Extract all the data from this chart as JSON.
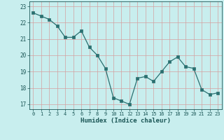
{
  "x": [
    0,
    1,
    2,
    3,
    4,
    5,
    6,
    7,
    8,
    9,
    10,
    11,
    12,
    13,
    14,
    15,
    16,
    17,
    18,
    19,
    20,
    21,
    22,
    23
  ],
  "y": [
    22.6,
    22.4,
    22.2,
    21.8,
    21.1,
    21.1,
    21.5,
    20.5,
    20.0,
    19.2,
    17.4,
    17.2,
    17.0,
    18.6,
    18.7,
    18.4,
    19.0,
    19.6,
    19.9,
    19.3,
    19.2,
    17.9,
    17.6,
    17.7
  ],
  "xlabel": "Humidex (Indice chaleur)",
  "bg_color": "#c8eeee",
  "grid_color": "#d4a0a0",
  "line_color": "#2a7070",
  "marker_color": "#2a7070",
  "tick_color": "#1a5555",
  "label_color": "#1a5555",
  "ylim": [
    16.7,
    23.3
  ],
  "yticks": [
    17,
    18,
    19,
    20,
    21,
    22,
    23
  ],
  "xticks": [
    0,
    1,
    2,
    3,
    4,
    5,
    6,
    7,
    8,
    9,
    10,
    11,
    12,
    13,
    14,
    15,
    16,
    17,
    18,
    19,
    20,
    21,
    22,
    23
  ]
}
